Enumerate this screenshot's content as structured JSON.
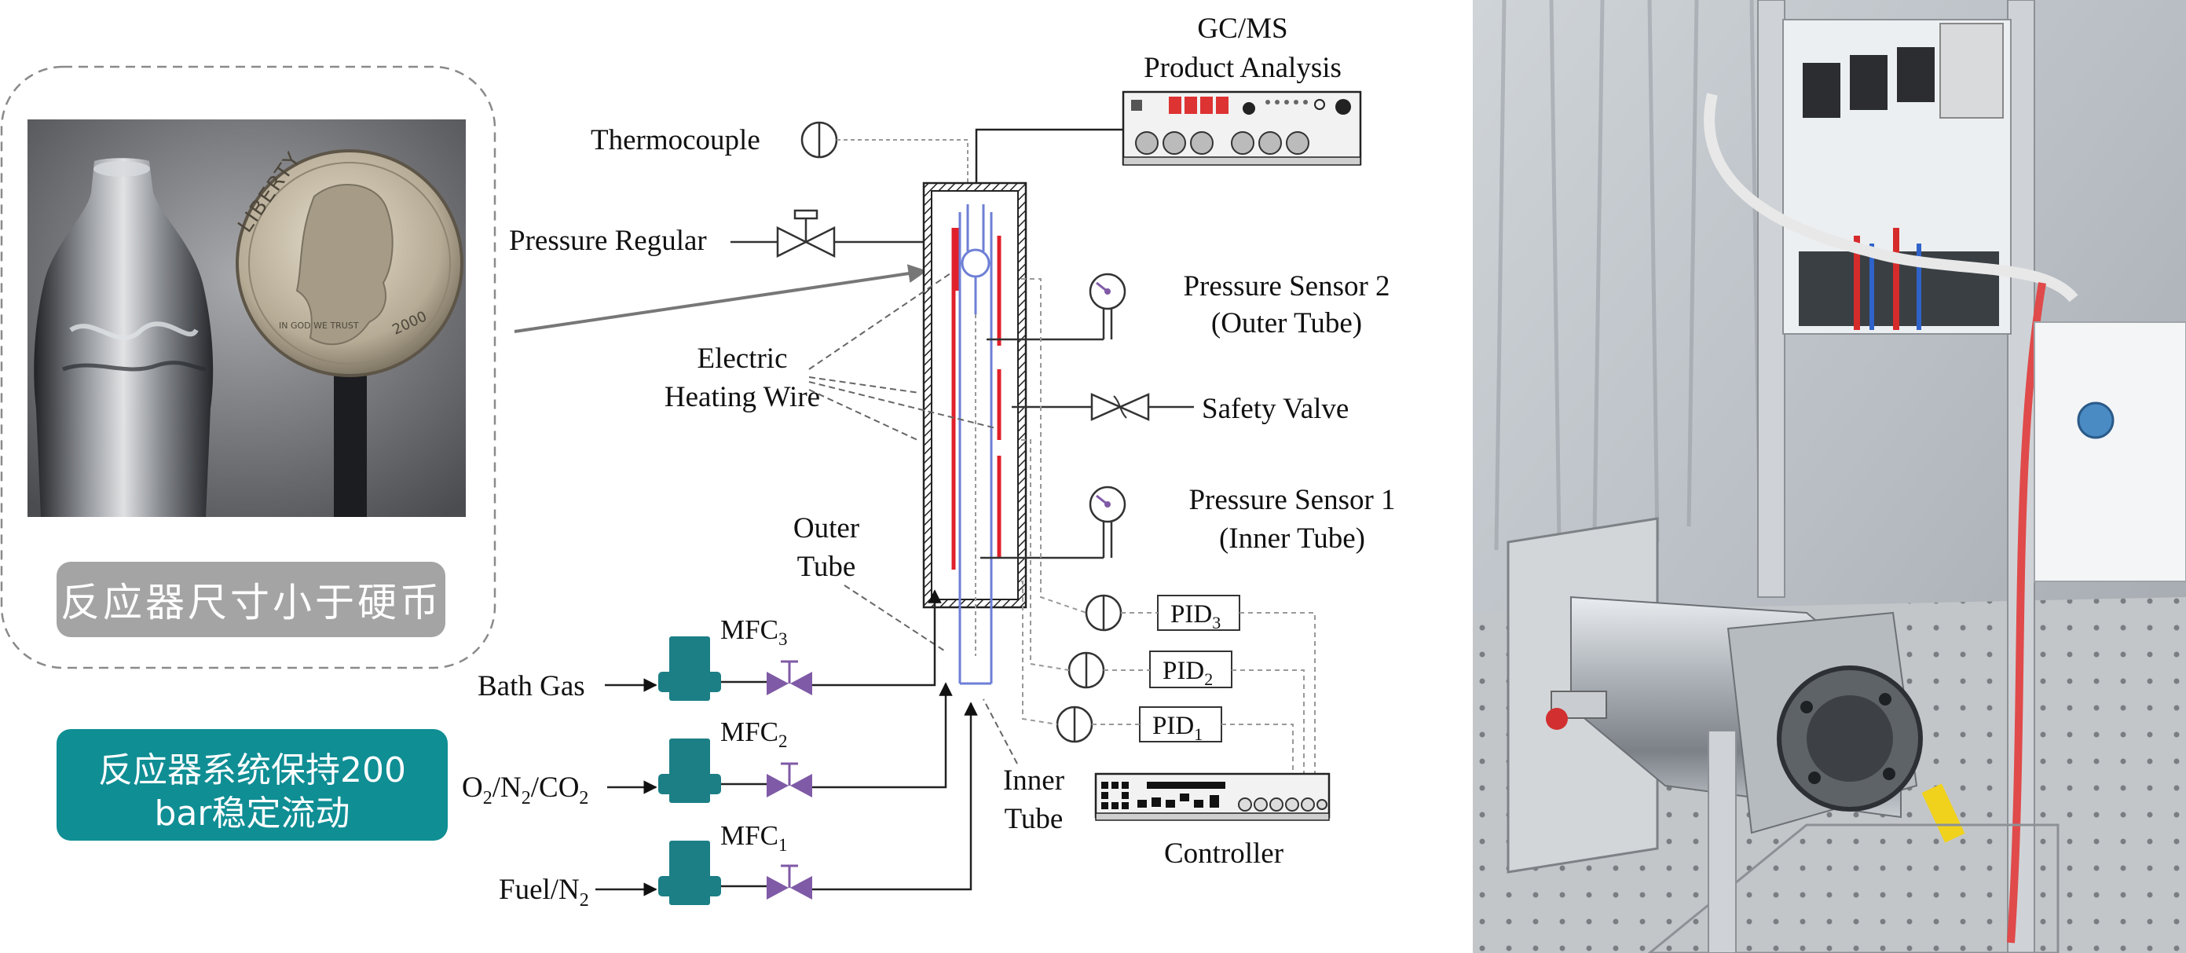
{
  "colors": {
    "teal": "#0f8e94",
    "grey_badge": "#a4a4a4",
    "heating_red": "#e0202a",
    "tube_blue": "#6e7fd6",
    "valve_purple": "#7f5aa6",
    "mfc_teal": "#1c7f86"
  },
  "left_panel": {
    "photo_caption": "反应器尺寸小于硬币",
    "coin_text": "LIBERTY",
    "coin_year": "2000",
    "coin_motto": "IN GOD WE TRUST",
    "teal_line1": "反应器系统保持200",
    "teal_line2": "bar稳定流动"
  },
  "schematic": {
    "gcms_line1": "GC/MS",
    "gcms_line2": "Product Analysis",
    "thermocouple": "Thermocouple",
    "pressure_regulator": "Pressure Regular",
    "ps2_line1": "Pressure Sensor 2",
    "ps2_line2": "(Outer Tube)",
    "heating_line1": "Electric",
    "heating_line2": "Heating Wire",
    "safety_valve": "Safety Valve",
    "ps1_line1": "Pressure Sensor 1",
    "ps1_line2": "(Inner Tube)",
    "outer_tube_line1": "Outer",
    "outer_tube_line2": "Tube",
    "inner_tube_line1": "Inner",
    "inner_tube_line2": "Tube",
    "pid3": "PID",
    "pid3_sub": "3",
    "pid2": "PID",
    "pid2_sub": "2",
    "pid1": "PID",
    "pid1_sub": "1",
    "mfc3": "MFC",
    "mfc3_sub": "3",
    "mfc2": "MFC",
    "mfc2_sub": "2",
    "mfc1": "MFC",
    "mfc1_sub": "1",
    "bath_gas": "Bath Gas",
    "oxidizer_o": "O",
    "oxidizer_s1": "2",
    "oxidizer_n": "/N",
    "oxidizer_s2": "2",
    "oxidizer_co": "/CO",
    "oxidizer_s3": "2",
    "fuel": "Fuel/N",
    "fuel_sub": "2",
    "controller": "Controller"
  }
}
